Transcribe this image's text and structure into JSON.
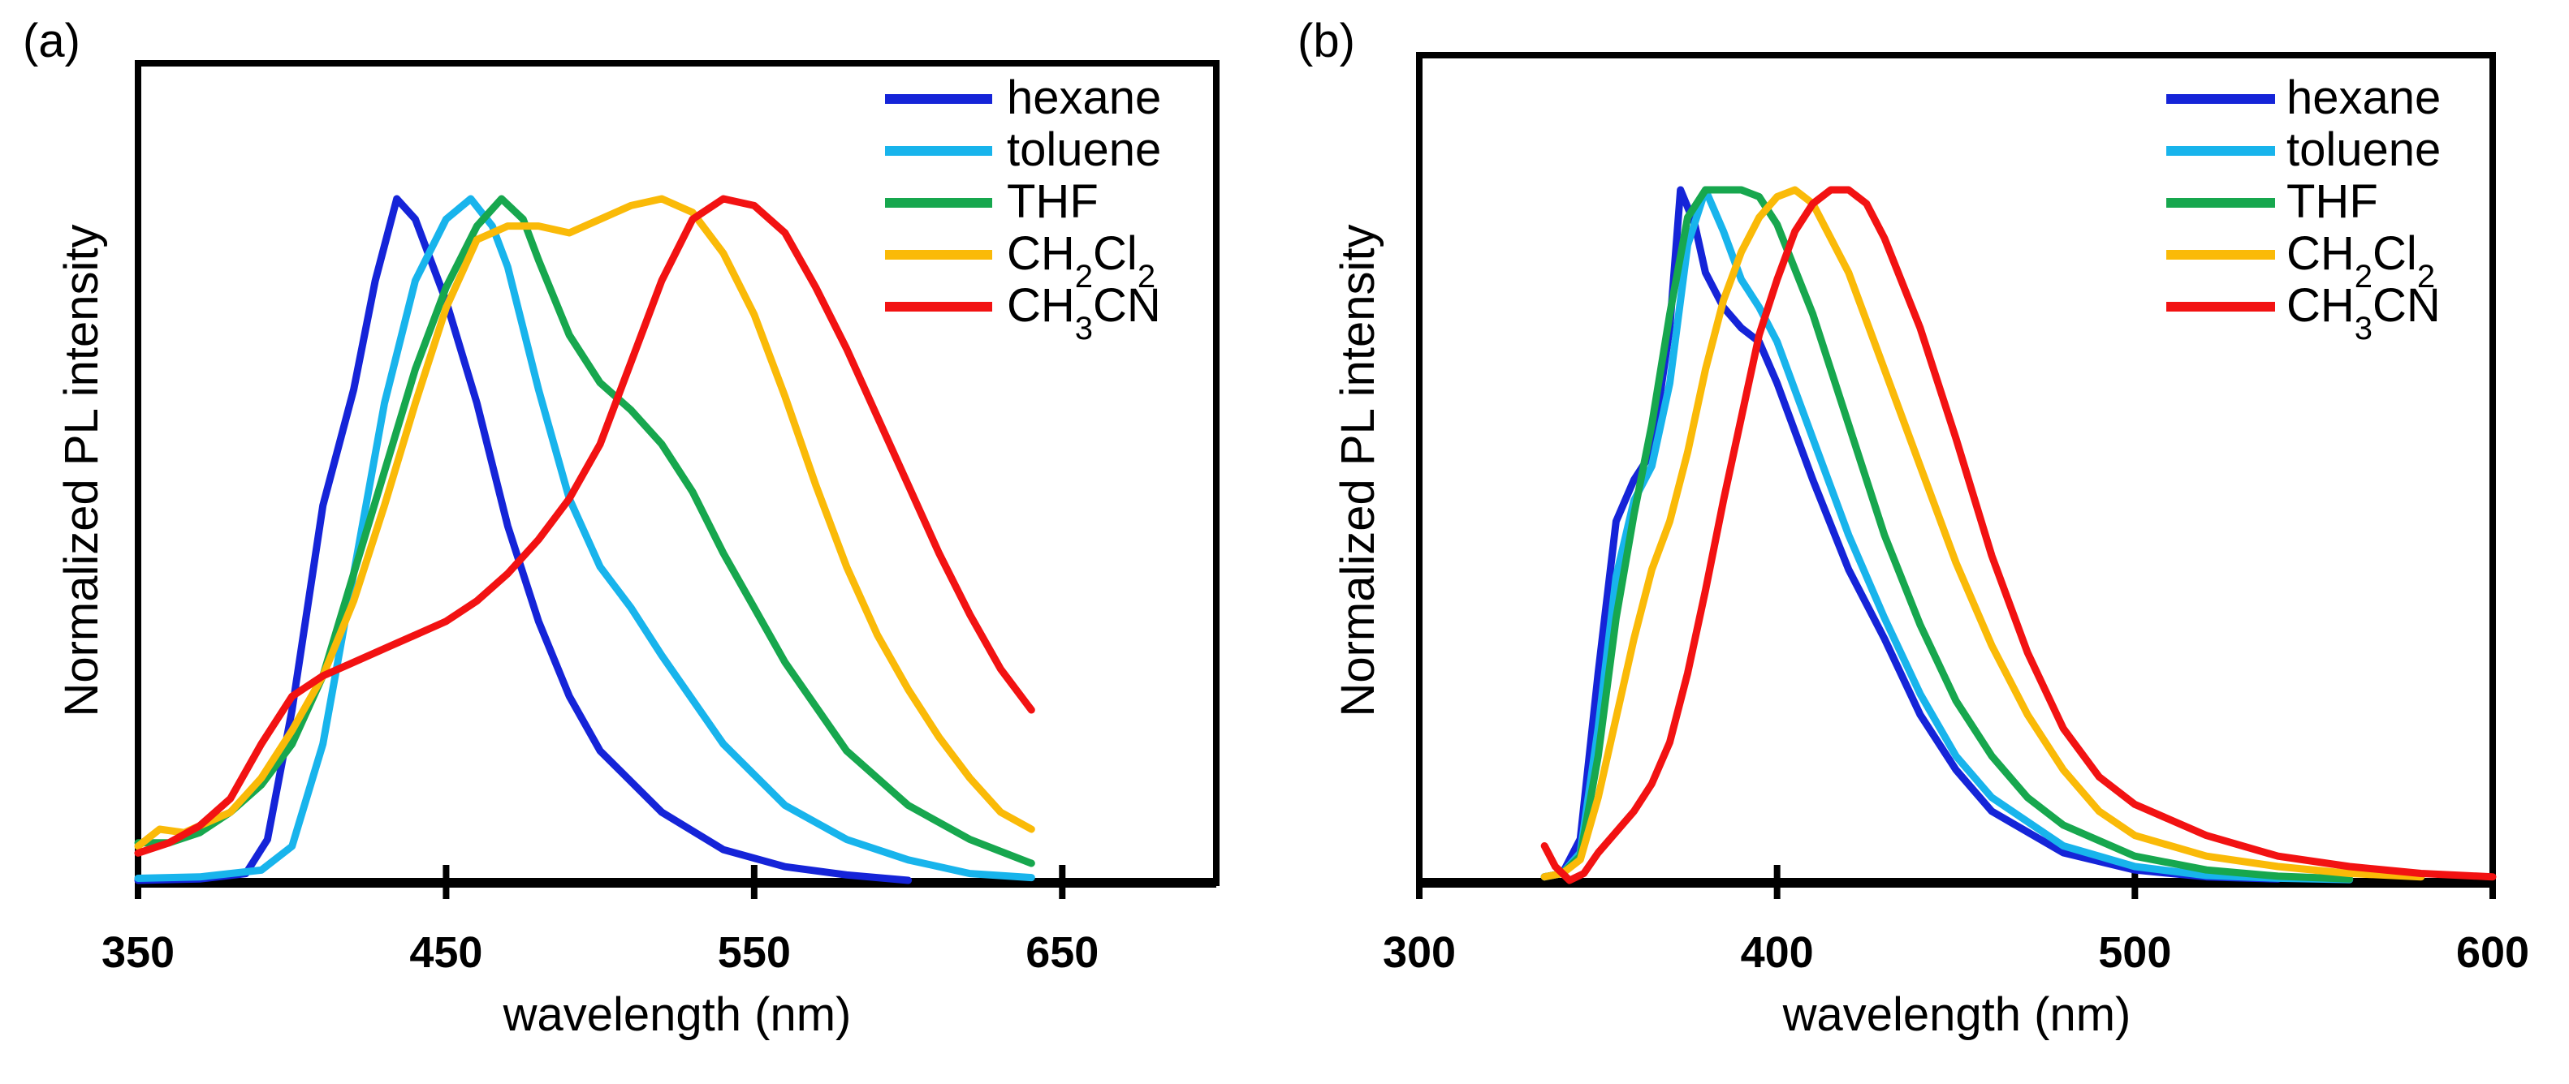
{
  "chart_data": [
    {
      "type": "line",
      "panel_label": "(a)",
      "title": "",
      "xlabel": "wavelength (nm)",
      "ylabel": "Normalized PL intensity",
      "xlim": [
        350,
        700
      ],
      "ylim": [
        0,
        1.0
      ],
      "xticks": [
        350,
        450,
        550,
        650
      ],
      "xtick_labels": [
        "350",
        "450",
        "550",
        "650"
      ],
      "grid": false,
      "legend_position": "top-right",
      "series": [
        {
          "name": "hexane",
          "label_main": "hexane",
          "label_sub": [],
          "color": "#1524D8",
          "x": [
            350,
            370,
            385,
            392,
            400,
            410,
            420,
            427,
            434,
            440,
            450,
            460,
            470,
            480,
            490,
            500,
            520,
            540,
            560,
            580,
            600
          ],
          "y": [
            0,
            0.002,
            0.01,
            0.06,
            0.25,
            0.55,
            0.72,
            0.88,
            1.0,
            0.97,
            0.85,
            0.7,
            0.52,
            0.38,
            0.27,
            0.19,
            0.1,
            0.045,
            0.02,
            0.008,
            0
          ]
        },
        {
          "name": "toluene",
          "label_main": "toluene",
          "label_sub": [],
          "color": "#18B4EC",
          "x": [
            350,
            370,
            390,
            400,
            410,
            420,
            430,
            440,
            450,
            458,
            465,
            470,
            480,
            490,
            500,
            510,
            520,
            540,
            560,
            580,
            600,
            620,
            640
          ],
          "y": [
            0.003,
            0.005,
            0.015,
            0.05,
            0.2,
            0.45,
            0.7,
            0.88,
            0.97,
            1.0,
            0.96,
            0.9,
            0.72,
            0.56,
            0.46,
            0.4,
            0.33,
            0.2,
            0.11,
            0.06,
            0.03,
            0.01,
            0.004
          ]
        },
        {
          "name": "THF",
          "label_main": "THF",
          "label_sub": [],
          "color": "#17A74E",
          "x": [
            350,
            360,
            370,
            380,
            390,
            400,
            410,
            420,
            430,
            440,
            450,
            460,
            468,
            475,
            480,
            490,
            500,
            510,
            520,
            530,
            540,
            550,
            560,
            580,
            600,
            620,
            640
          ],
          "y": [
            0.055,
            0.055,
            0.07,
            0.1,
            0.14,
            0.2,
            0.3,
            0.45,
            0.6,
            0.75,
            0.87,
            0.96,
            1.0,
            0.97,
            0.91,
            0.8,
            0.73,
            0.69,
            0.64,
            0.57,
            0.48,
            0.4,
            0.32,
            0.19,
            0.11,
            0.06,
            0.025
          ]
        },
        {
          "name": "CH2Cl2",
          "label_main": "CH",
          "label_sub": [
            "2",
            "Cl",
            "2"
          ],
          "color": "#FABA08",
          "x": [
            350,
            357,
            365,
            380,
            390,
            400,
            410,
            420,
            430,
            440,
            450,
            460,
            470,
            480,
            490,
            500,
            510,
            520,
            530,
            540,
            550,
            560,
            570,
            580,
            590,
            600,
            610,
            620,
            630,
            640
          ],
          "y": [
            0.05,
            0.075,
            0.07,
            0.1,
            0.15,
            0.22,
            0.3,
            0.41,
            0.55,
            0.7,
            0.84,
            0.94,
            0.96,
            0.96,
            0.95,
            0.97,
            0.99,
            1.0,
            0.98,
            0.92,
            0.83,
            0.71,
            0.58,
            0.46,
            0.36,
            0.28,
            0.21,
            0.15,
            0.1,
            0.075
          ]
        },
        {
          "name": "CH3CN",
          "label_main": "CH",
          "label_sub": [
            "3",
            "CN"
          ],
          "color": "#F21212",
          "x": [
            350,
            360,
            370,
            380,
            390,
            400,
            410,
            420,
            430,
            440,
            450,
            460,
            470,
            480,
            490,
            500,
            510,
            520,
            530,
            540,
            550,
            560,
            570,
            580,
            590,
            600,
            610,
            620,
            630,
            640
          ],
          "y": [
            0.04,
            0.055,
            0.08,
            0.12,
            0.2,
            0.27,
            0.3,
            0.32,
            0.34,
            0.36,
            0.38,
            0.41,
            0.45,
            0.5,
            0.56,
            0.64,
            0.76,
            0.88,
            0.97,
            1.0,
            0.99,
            0.95,
            0.87,
            0.78,
            0.68,
            0.58,
            0.48,
            0.39,
            0.31,
            0.25
          ]
        }
      ]
    },
    {
      "type": "line",
      "panel_label": "(b)",
      "title": "",
      "xlabel": "wavelength (nm)",
      "ylabel": "Normalized PL intensity",
      "xlim": [
        300,
        600
      ],
      "ylim": [
        0,
        1.0
      ],
      "xticks": [
        300,
        400,
        500,
        600
      ],
      "xtick_labels": [
        "300",
        "400",
        "500",
        "600"
      ],
      "grid": false,
      "legend_position": "top-right",
      "series": [
        {
          "name": "hexane",
          "label_main": "hexane",
          "label_sub": [],
          "color": "#1524D8",
          "x": [
            335,
            340,
            345,
            350,
            355,
            360,
            365,
            370,
            373,
            377,
            380,
            385,
            390,
            395,
            400,
            410,
            420,
            430,
            440,
            450,
            460,
            480,
            500,
            520,
            540
          ],
          "y": [
            0.005,
            0.01,
            0.06,
            0.3,
            0.52,
            0.58,
            0.62,
            0.8,
            1.0,
            0.95,
            0.88,
            0.83,
            0.8,
            0.78,
            0.72,
            0.58,
            0.45,
            0.35,
            0.24,
            0.16,
            0.1,
            0.04,
            0.015,
            0.005,
            0.002
          ]
        },
        {
          "name": "toluene",
          "label_main": "toluene",
          "label_sub": [],
          "color": "#18B4EC",
          "x": [
            335,
            340,
            345,
            350,
            355,
            360,
            365,
            370,
            375,
            380,
            385,
            390,
            395,
            400,
            410,
            420,
            430,
            440,
            450,
            460,
            480,
            500,
            520,
            540,
            560
          ],
          "y": [
            0.005,
            0.01,
            0.04,
            0.22,
            0.44,
            0.55,
            0.6,
            0.72,
            0.92,
            1.0,
            0.94,
            0.87,
            0.83,
            0.78,
            0.64,
            0.5,
            0.38,
            0.27,
            0.18,
            0.12,
            0.05,
            0.02,
            0.007,
            0.003,
            0.001
          ]
        },
        {
          "name": "THF",
          "label_main": "THF",
          "label_sub": [],
          "color": "#17A74E",
          "x": [
            335,
            340,
            345,
            350,
            355,
            360,
            365,
            370,
            375,
            380,
            385,
            390,
            395,
            400,
            410,
            420,
            430,
            440,
            450,
            460,
            470,
            480,
            500,
            520,
            540,
            560
          ],
          "y": [
            0.005,
            0.01,
            0.035,
            0.18,
            0.38,
            0.53,
            0.66,
            0.82,
            0.96,
            1.0,
            1.0,
            1.0,
            0.99,
            0.95,
            0.82,
            0.66,
            0.5,
            0.37,
            0.26,
            0.18,
            0.12,
            0.08,
            0.035,
            0.015,
            0.006,
            0.002
          ]
        },
        {
          "name": "CH2Cl2",
          "label_main": "CH",
          "label_sub": [
            "2",
            "Cl",
            "2"
          ],
          "color": "#FABA08",
          "x": [
            335,
            340,
            345,
            350,
            360,
            365,
            370,
            375,
            380,
            385,
            390,
            395,
            400,
            405,
            410,
            420,
            430,
            440,
            450,
            460,
            470,
            480,
            490,
            500,
            520,
            540,
            560,
            580
          ],
          "y": [
            0.005,
            0.01,
            0.03,
            0.12,
            0.35,
            0.45,
            0.52,
            0.62,
            0.74,
            0.84,
            0.91,
            0.96,
            0.99,
            1.0,
            0.98,
            0.88,
            0.74,
            0.6,
            0.46,
            0.34,
            0.24,
            0.16,
            0.1,
            0.065,
            0.035,
            0.02,
            0.01,
            0.005
          ]
        },
        {
          "name": "CH3CN",
          "label_main": "CH",
          "label_sub": [
            "3",
            "CN"
          ],
          "color": "#F21212",
          "x": [
            335,
            338,
            342,
            346,
            350,
            355,
            360,
            365,
            370,
            375,
            380,
            385,
            390,
            395,
            400,
            405,
            410,
            415,
            420,
            425,
            430,
            440,
            450,
            460,
            470,
            480,
            490,
            500,
            520,
            540,
            560,
            580,
            600
          ],
          "y": [
            0.05,
            0.02,
            0.0,
            0.01,
            0.04,
            0.07,
            0.1,
            0.14,
            0.2,
            0.3,
            0.42,
            0.55,
            0.67,
            0.79,
            0.87,
            0.94,
            0.98,
            1.0,
            1.0,
            0.98,
            0.93,
            0.8,
            0.64,
            0.47,
            0.33,
            0.22,
            0.15,
            0.11,
            0.065,
            0.035,
            0.02,
            0.01,
            0.005
          ]
        }
      ]
    }
  ]
}
